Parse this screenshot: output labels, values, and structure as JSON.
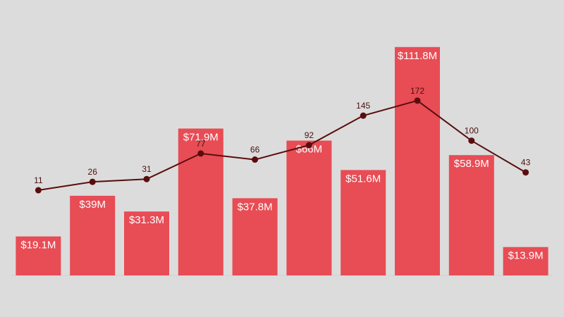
{
  "colors": {
    "background": "#dcdcdc",
    "bar": "#e84c55",
    "line": "#5a0d0d"
  },
  "chart_data": {
    "type": "bar",
    "categories": [
      "",
      "",
      "",
      "",
      "",
      "",
      "",
      "",
      "",
      ""
    ],
    "series": [
      {
        "kind": "bar",
        "values": [
          19.1,
          39,
          31.3,
          71.9,
          37.8,
          66,
          51.6,
          111.8,
          58.9,
          13.9
        ],
        "labels": [
          "$19.1M",
          "$39M",
          "$31.3M",
          "$71.9M",
          "$37.8M",
          "$66M",
          "$51.6M",
          "$111.8M",
          "$58.9M",
          "$13.9M"
        ]
      },
      {
        "kind": "line",
        "values": [
          11,
          26,
          31,
          77,
          66,
          92,
          145,
          172,
          100,
          43
        ],
        "labels": [
          "11",
          "26",
          "31",
          "77",
          "66",
          "92",
          "145",
          "172",
          "100",
          "43"
        ]
      }
    ],
    "title": "",
    "xlabel": "",
    "ylabel": "",
    "grid": false
  }
}
